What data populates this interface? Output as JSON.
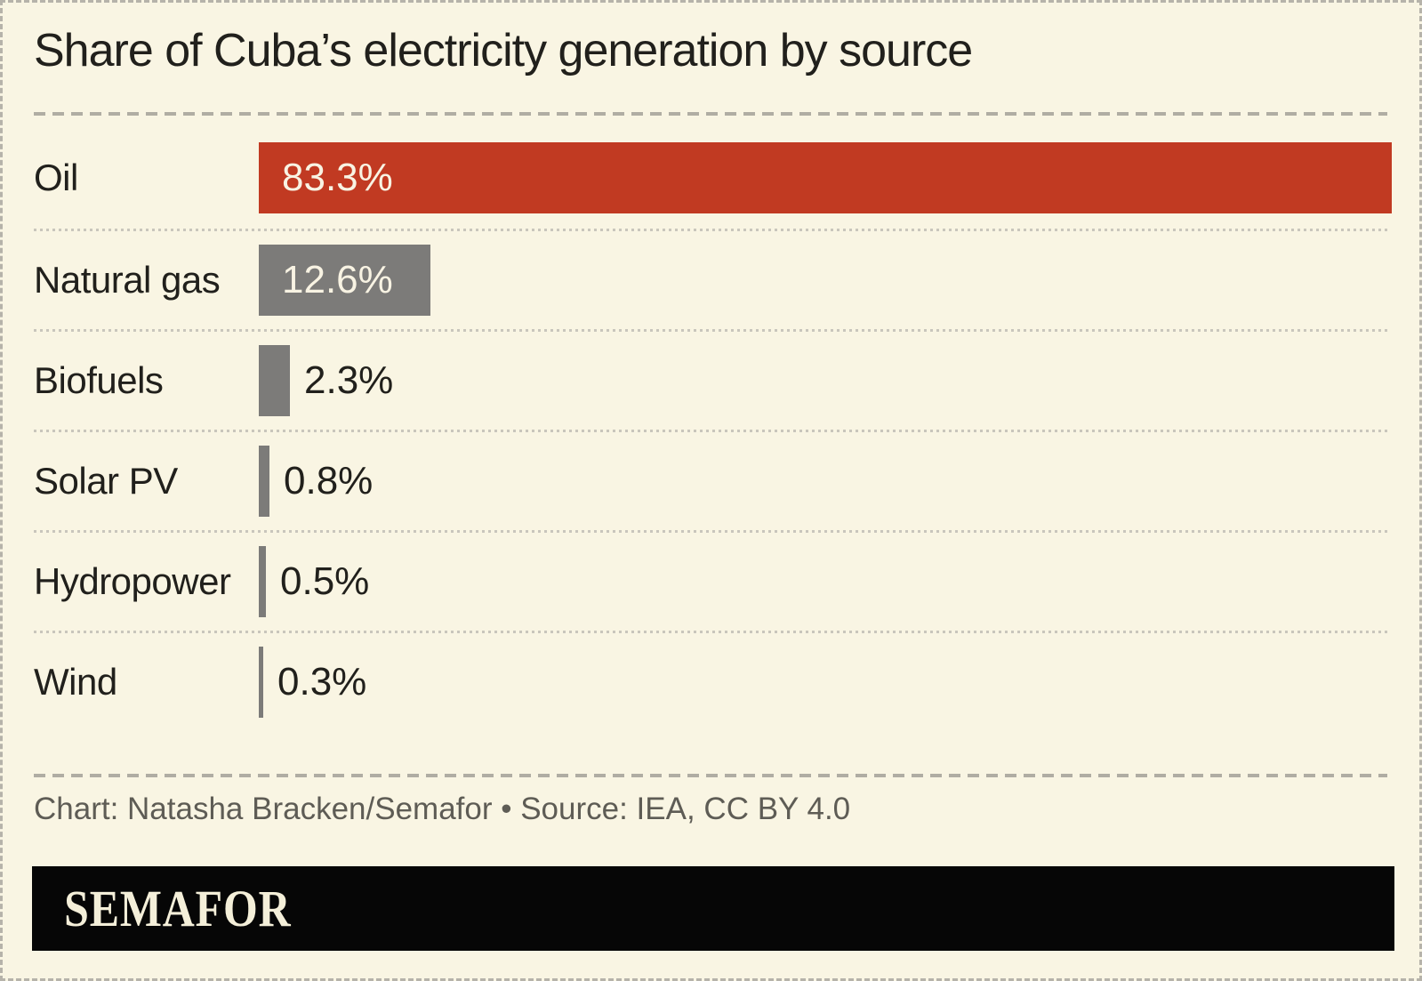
{
  "title": "Share of Cuba’s electricity generation by source",
  "chart_data": {
    "type": "bar",
    "orientation": "horizontal",
    "title": "Share of Cuba’s electricity generation by source",
    "categories": [
      "Oil",
      "Natural gas",
      "Biofuels",
      "Solar PV",
      "Hydropower",
      "Wind"
    ],
    "values": [
      83.3,
      12.6,
      2.3,
      0.8,
      0.5,
      0.3
    ],
    "value_labels": [
      "83.3%",
      "12.6%",
      "2.3%",
      "0.8%",
      "0.5%",
      "0.3%"
    ],
    "colors": [
      "#c13a22",
      "#7c7b79",
      "#7c7b79",
      "#7c7b79",
      "#7c7b79",
      "#7c7b79"
    ],
    "unit": "%",
    "xlim": [
      0,
      100
    ],
    "grid": false,
    "legend": false,
    "value_label_inside_color": "#f8f3e3",
    "value_label_outside_color": "#21201c"
  },
  "footer": {
    "credit": "Chart: Natasha Bracken/Semafor • Source: IEA, CC BY 4.0",
    "logo_text": "SEMAFOR"
  },
  "colors": {
    "background": "#f9f5e3",
    "accent_red": "#c13a22",
    "bar_gray": "#7c7b79",
    "text_dark": "#21201c",
    "credit_gray": "#5e5c55",
    "banner_black": "#060606",
    "wordmark_cream": "#f4efd9",
    "separator_dash": "#b0ada3",
    "separator_dot": "#c9c6bc",
    "outer_border": "#b6b3aa"
  }
}
